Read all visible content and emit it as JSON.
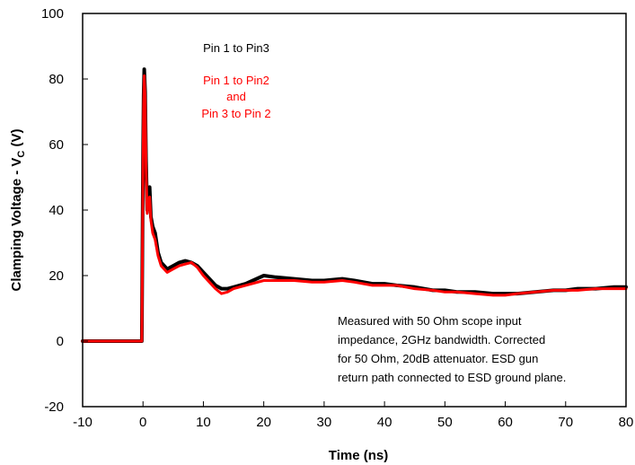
{
  "chart_data": {
    "type": "line",
    "title": "",
    "xlabel": "Time (ns)",
    "ylabel_main": "Clamping Voltage - V",
    "ylabel_sub": "C",
    "ylabel_unit": " (V)",
    "xlim": [
      -10,
      80
    ],
    "ylim": [
      -20,
      100
    ],
    "xticks": [
      "-10",
      "0",
      "10",
      "20",
      "30",
      "40",
      "50",
      "60",
      "70",
      "80"
    ],
    "yticks": [
      "-20",
      "0",
      "20",
      "40",
      "60",
      "80",
      "100"
    ],
    "grid": false,
    "legend_labels": [
      {
        "text": "Pin 1 to Pin3",
        "color": "#000000"
      },
      {
        "text": "Pin 1 to Pin2",
        "color": "#ff0000"
      },
      {
        "text": "and",
        "color": "#ff0000"
      },
      {
        "text": "Pin 3 to Pin 2",
        "color": "#ff0000"
      }
    ],
    "annotation_lines": [
      "Measured with 50 Ohm scope input",
      "impedance, 2GHz bandwidth. Corrected",
      "for 50 Ohm, 20dB attenuator. ESD gun",
      "return path connected to ESD ground plane."
    ],
    "series": [
      {
        "color": "#000000",
        "x": [
          -10,
          -0.5,
          -0.2,
          0.0,
          0.1,
          0.2,
          0.35,
          0.5,
          0.7,
          0.9,
          1.1,
          1.3,
          1.6,
          2.0,
          2.5,
          3.0,
          4.0,
          5.0,
          6.0,
          7.0,
          8.0,
          9.0,
          10.0,
          11.0,
          12.0,
          13.0,
          14.0,
          15.0,
          17.0,
          20.0,
          22.0,
          25.0,
          28.0,
          30.0,
          33.0,
          35.0,
          38.0,
          40.0,
          42.0,
          45.0,
          48.0,
          50.0,
          52.0,
          55.0,
          58.0,
          60.0,
          62.0,
          65.0,
          68.0,
          70.0,
          72.0,
          75.0,
          78.0,
          80.0
        ],
        "y": [
          0,
          0,
          0,
          55,
          75,
          83,
          76,
          55,
          40,
          46,
          47,
          38,
          35,
          33,
          27,
          24,
          22,
          23,
          24,
          24.5,
          24,
          23,
          21,
          19,
          17,
          16,
          16,
          16.5,
          17.5,
          20,
          19.5,
          19,
          18.5,
          18.5,
          19,
          18.5,
          17.5,
          17.5,
          17,
          16.5,
          15.5,
          15.5,
          15,
          15,
          14.5,
          14.5,
          14.5,
          15,
          15.5,
          15.5,
          16,
          16,
          16.5,
          16.5
        ]
      },
      {
        "color": "#ff0000",
        "x": [
          -10,
          -0.5,
          -0.2,
          0.0,
          0.1,
          0.2,
          0.35,
          0.5,
          0.7,
          0.9,
          1.1,
          1.3,
          1.6,
          2.0,
          2.5,
          3.0,
          4.0,
          5.0,
          6.0,
          7.0,
          8.0,
          9.0,
          10.0,
          11.0,
          12.0,
          13.0,
          14.0,
          15.0,
          17.0,
          20.0,
          22.0,
          25.0,
          28.0,
          30.0,
          33.0,
          35.0,
          38.0,
          40.0,
          42.0,
          45.0,
          48.0,
          50.0,
          52.0,
          55.0,
          58.0,
          60.0,
          62.0,
          65.0,
          68.0,
          70.0,
          72.0,
          75.0,
          78.0,
          80.0
        ],
        "y": [
          0,
          0,
          0,
          52,
          72,
          81,
          74,
          53,
          39,
          42,
          44,
          37,
          33,
          31,
          26,
          23,
          21,
          22,
          23,
          23.5,
          24,
          22.5,
          20,
          18,
          16,
          14.5,
          15,
          16,
          17,
          18.5,
          18.5,
          18.5,
          18,
          18,
          18.5,
          18,
          17,
          17,
          17,
          16,
          15.5,
          15,
          15,
          14.5,
          14,
          14,
          14.5,
          15,
          15.5,
          15.5,
          15.5,
          16,
          16,
          16
        ]
      }
    ]
  }
}
